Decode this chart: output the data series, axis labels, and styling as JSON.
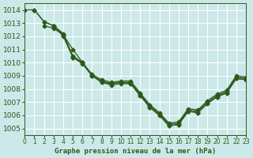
{
  "title": "Graphe pression niveau de la mer (hPa)",
  "background_color": "#cce8e8",
  "grid_color": "#ffffff",
  "line_color": "#2d5a1b",
  "xlim": [
    0,
    23
  ],
  "ylim": [
    1004.5,
    1014.5
  ],
  "yticks": [
    1005,
    1006,
    1007,
    1008,
    1009,
    1010,
    1011,
    1012,
    1013,
    1014
  ],
  "xticks": [
    0,
    1,
    2,
    3,
    4,
    5,
    6,
    7,
    8,
    9,
    10,
    11,
    12,
    13,
    14,
    15,
    16,
    17,
    18,
    19,
    20,
    21,
    22,
    23
  ],
  "series": [
    {
      "x": [
        0,
        1,
        2,
        3,
        4,
        5,
        6,
        7,
        8,
        9,
        10,
        11,
        12,
        13,
        14,
        15,
        16,
        17,
        18,
        19,
        20,
        21,
        22,
        23
      ],
      "y": [
        1014.0,
        1014.0,
        1013.1,
        1012.8,
        1012.1,
        1010.4,
        1010.0,
        1009.0,
        1008.6,
        1008.4,
        1008.5,
        1008.5,
        1007.6,
        1006.7,
        1006.1,
        1005.3,
        1005.4,
        1006.4,
        1006.3,
        1007.0,
        1007.5,
        1007.8,
        1008.9,
        1008.8
      ]
    },
    {
      "x": [
        1,
        2,
        3,
        4,
        5,
        6,
        7,
        8,
        9,
        10,
        11,
        12,
        13,
        14,
        15,
        16,
        17,
        18,
        19,
        20,
        21,
        22,
        23
      ],
      "y": [
        1014.0,
        1013.1,
        1012.8,
        1012.2,
        1010.5,
        1010.0,
        1009.1,
        1008.7,
        1008.5,
        1008.6,
        1008.6,
        1007.7,
        1006.8,
        1006.2,
        1005.4,
        1005.5,
        1006.5,
        1006.4,
        1007.1,
        1007.6,
        1007.9,
        1009.0,
        1008.9
      ]
    },
    {
      "x": [
        2,
        3,
        4,
        5,
        6,
        7,
        8,
        9,
        10,
        11,
        12,
        13,
        14,
        15,
        16,
        17,
        18,
        19,
        20,
        21,
        22,
        23
      ],
      "y": [
        1012.8,
        1012.6,
        1012.1,
        1011.0,
        1010.0,
        1009.0,
        1008.5,
        1008.4,
        1008.5,
        1008.4,
        1007.5,
        1006.6,
        1006.0,
        1005.2,
        1005.3,
        1006.3,
        1006.2,
        1006.9,
        1007.4,
        1007.7,
        1008.8,
        1008.7
      ]
    },
    {
      "x": [
        3,
        4,
        5,
        6,
        7,
        8,
        9,
        10,
        11,
        12,
        13,
        14,
        15,
        16,
        17,
        18,
        19,
        20,
        21,
        22,
        23
      ],
      "y": [
        1012.8,
        1012.0,
        1010.4,
        1009.9,
        1009.0,
        1008.5,
        1008.3,
        1008.4,
        1008.4,
        1007.5,
        1006.6,
        1006.0,
        1005.2,
        1005.3,
        1006.3,
        1006.2,
        1006.9,
        1007.4,
        1007.7,
        1008.8,
        1008.7
      ]
    }
  ]
}
